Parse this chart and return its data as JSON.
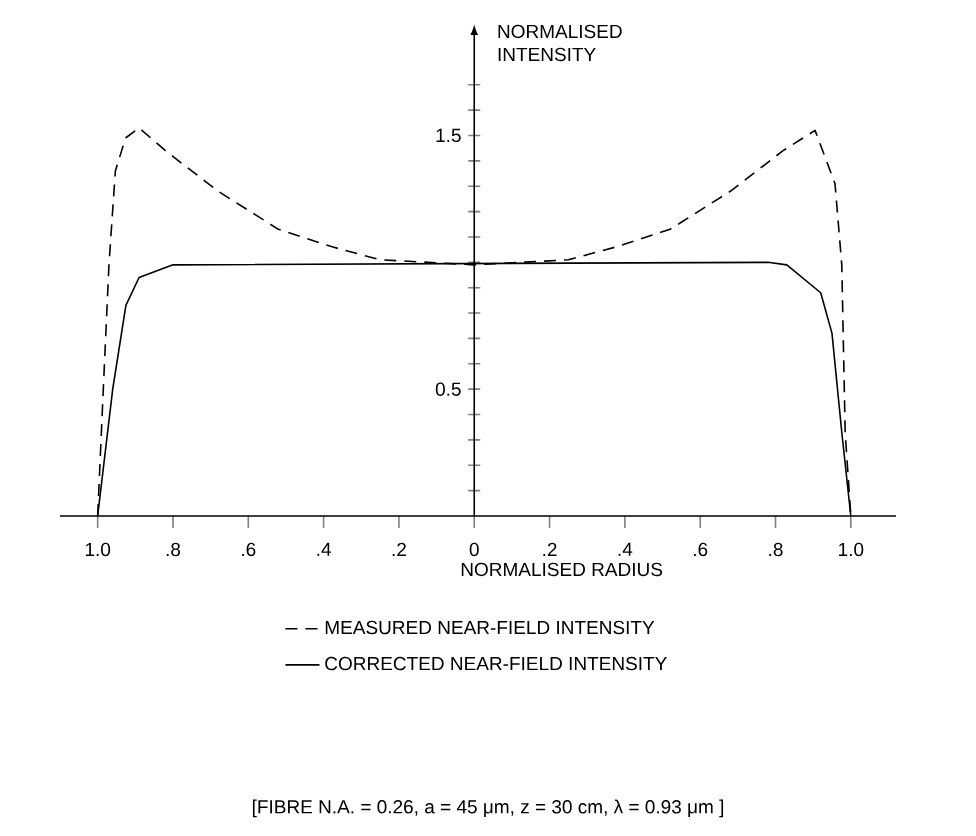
{
  "chart_data": {
    "type": "line",
    "xlabel": "NORMALISED RADIUS",
    "ylabel": "NORMALISED INTENSITY",
    "xlim": [
      -1.1,
      1.12
    ],
    "ylim": [
      0,
      1.9
    ],
    "xticks": [
      {
        "value": -1,
        "label": "1.0"
      },
      {
        "value": -0.8,
        "label": ".8"
      },
      {
        "value": -0.6,
        "label": ".6"
      },
      {
        "value": -0.4,
        "label": ".4"
      },
      {
        "value": -0.2,
        "label": ".2"
      },
      0,
      {
        "value": 0.2,
        "label": ".2"
      },
      {
        "value": 0.4,
        "label": ".4"
      },
      {
        "value": 0.6,
        "label": ".6"
      },
      {
        "value": 0.8,
        "label": ".8"
      },
      {
        "value": 1,
        "label": "1.0"
      }
    ],
    "yticks": [
      {
        "value": 0.1,
        "label": null
      },
      {
        "value": 0.2,
        "label": null
      },
      {
        "value": 0.3,
        "label": null
      },
      {
        "value": 0.4,
        "label": null
      },
      0.5,
      {
        "value": 0.6,
        "label": null
      },
      {
        "value": 0.7,
        "label": null
      },
      {
        "value": 0.8,
        "label": null
      },
      {
        "value": 0.9,
        "label": null
      },
      {
        "value": 1.0,
        "label": null
      },
      {
        "value": 1.1,
        "label": null
      },
      {
        "value": 1.2,
        "label": null
      },
      {
        "value": 1.3,
        "label": null
      },
      {
        "value": 1.4,
        "label": null
      },
      1.5,
      {
        "value": 1.6,
        "label": null
      },
      {
        "value": 1.7,
        "label": null
      }
    ],
    "series": [
      {
        "name": "MEASURED NEAR-FIELD INTENSITY",
        "color": "#000000",
        "line_style": "dashed",
        "x": [
          -1.0,
          -0.985,
          -0.97,
          -0.953,
          -0.926,
          -0.89,
          -0.82,
          -0.68,
          -0.52,
          -0.375,
          -0.25,
          0,
          0.25,
          0.375,
          0.52,
          0.68,
          0.82,
          0.905,
          0.958,
          0.976,
          0.985,
          1.0
        ],
        "values": [
          0,
          0.5,
          0.99,
          1.36,
          1.49,
          1.53,
          1.44,
          1.28,
          1.13,
          1.06,
          1.01,
          0.99,
          1.01,
          1.06,
          1.13,
          1.28,
          1.44,
          1.52,
          1.31,
          0.99,
          0.33,
          0
        ]
      },
      {
        "name": "CORRECTED NEAR-FIELD INTENSITY",
        "color": "#000000",
        "line_style": "solid",
        "x": [
          -1.0,
          -0.96,
          -0.925,
          -0.89,
          -0.8,
          0.78,
          0.83,
          0.92,
          0.95,
          0.976,
          1.0
        ],
        "values": [
          0,
          0.5,
          0.83,
          0.94,
          0.99,
          1.0,
          0.99,
          0.88,
          0.72,
          0.33,
          0
        ]
      }
    ],
    "legend": "bottom",
    "annotations": [
      "[FIBRE N.A. = 0.26, a = 45 μm, z = 30 cm, λ = 0.93 μm ]"
    ]
  }
}
